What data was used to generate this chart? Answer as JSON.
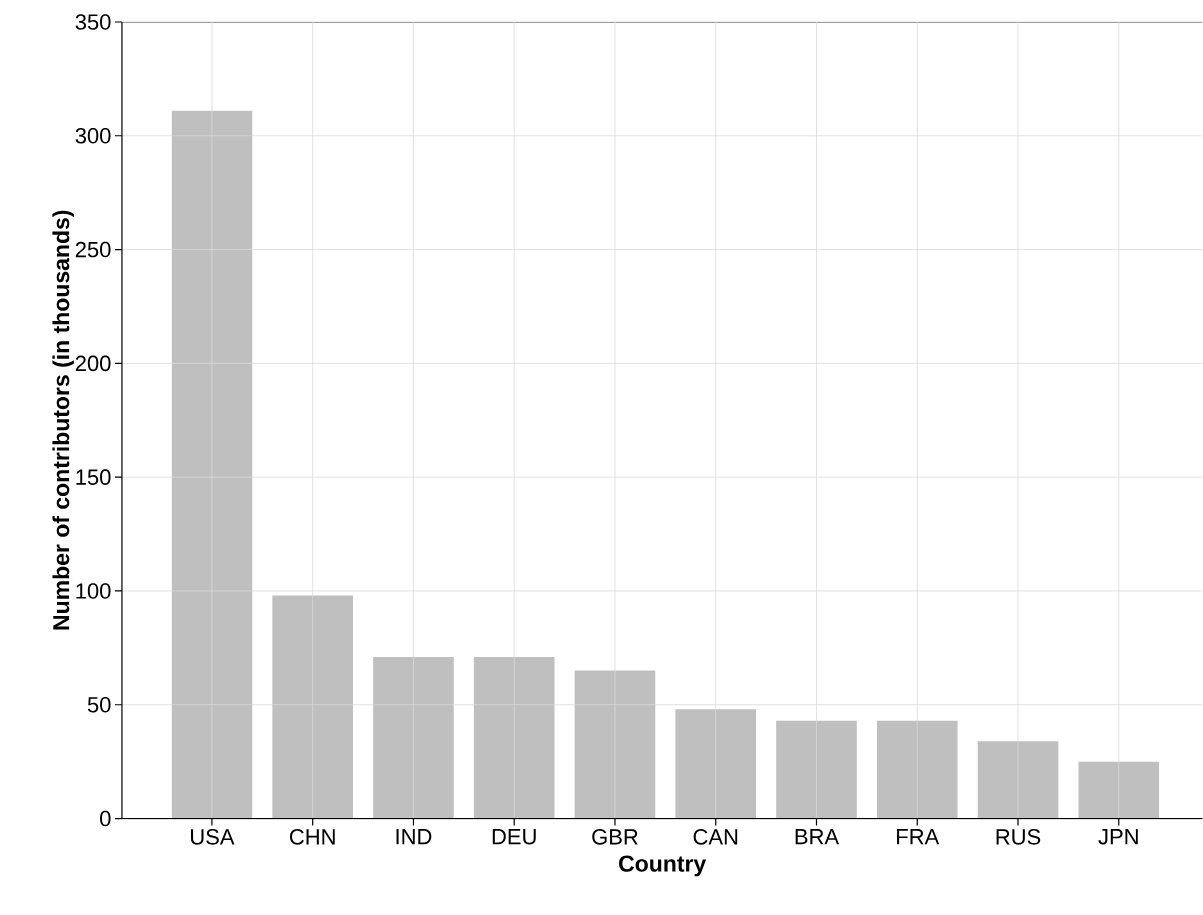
{
  "chart_data": {
    "type": "bar",
    "xlabel": "Country",
    "ylabel": "Number of contributors (in thousands)",
    "categories": [
      "USA",
      "CHN",
      "IND",
      "DEU",
      "GBR",
      "CAN",
      "BRA",
      "FRA",
      "RUS",
      "JPN"
    ],
    "values": [
      311,
      98,
      71,
      71,
      65,
      48,
      43,
      43,
      34,
      25
    ],
    "color": "#bfbfbf",
    "ylim": [
      0,
      350
    ],
    "yticks": [
      0,
      50,
      100,
      150,
      200,
      250,
      300,
      350
    ],
    "grid": true
  }
}
